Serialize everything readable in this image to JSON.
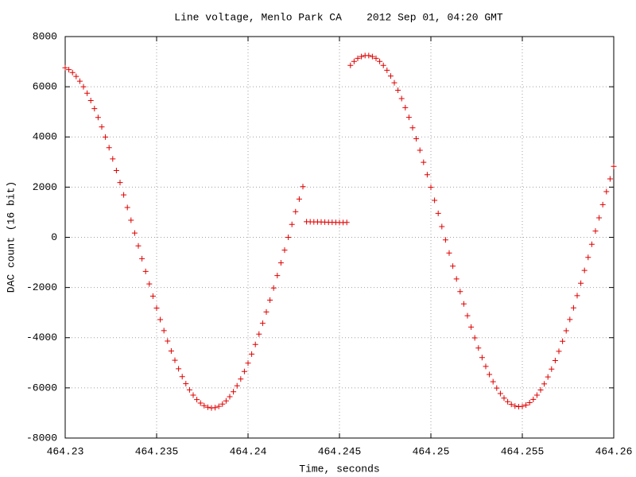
{
  "chart_data": {
    "type": "scatter",
    "title": "Line voltage, Menlo Park CA    2012 Sep 01, 04:20 GMT",
    "x_label": "Time, seconds",
    "y_label": "DAC count (16 bit)",
    "color": "#e00000",
    "grid": true,
    "xlim": [
      464.23,
      464.26
    ],
    "xticks": [
      464.23,
      464.235,
      464.24,
      464.245,
      464.25,
      464.255,
      464.26
    ],
    "ylim": [
      -8000,
      8000
    ],
    "yticks": [
      -8000,
      -6000,
      -4000,
      -2000,
      0,
      2000,
      4000,
      6000,
      8000
    ],
    "x": [
      464.23,
      464.2302,
      464.2304,
      464.2306,
      464.2308,
      464.231,
      464.2312,
      464.2314,
      464.2316,
      464.2318,
      464.232,
      464.2322,
      464.2324,
      464.2326,
      464.2328,
      464.233,
      464.2332,
      464.2334,
      464.2336,
      464.2338,
      464.234,
      464.2342,
      464.2344,
      464.2346,
      464.2348,
      464.235,
      464.2352,
      464.2354,
      464.2356,
      464.2358,
      464.236,
      464.2362,
      464.2364,
      464.2366,
      464.2368,
      464.237,
      464.2372,
      464.2374,
      464.2376,
      464.2378,
      464.238,
      464.2382,
      464.2384,
      464.2386,
      464.2388,
      464.239,
      464.2392,
      464.2394,
      464.2396,
      464.2398,
      464.24,
      464.2402,
      464.2404,
      464.2406,
      464.2408,
      464.241,
      464.2412,
      464.2414,
      464.2416,
      464.2418,
      464.242,
      464.2422,
      464.2424,
      464.2426,
      464.2428,
      464.243,
      464.2432,
      464.2434,
      464.2436,
      464.2438,
      464.244,
      464.2442,
      464.2444,
      464.2446,
      464.2448,
      464.245,
      464.2452,
      464.2454,
      464.2456,
      464.2458,
      464.246,
      464.2462,
      464.2464,
      464.2466,
      464.2468,
      464.247,
      464.2472,
      464.2474,
      464.2476,
      464.2478,
      464.248,
      464.2482,
      464.2484,
      464.2486,
      464.2488,
      464.249,
      464.2492,
      464.2494,
      464.2496,
      464.2498,
      464.25,
      464.2502,
      464.2504,
      464.2506,
      464.2508,
      464.251,
      464.2512,
      464.2514,
      464.2516,
      464.2518,
      464.252,
      464.2522,
      464.2524,
      464.2526,
      464.2528,
      464.253,
      464.2532,
      464.2534,
      464.2536,
      464.2538,
      464.254,
      464.2542,
      464.2544,
      464.2546,
      464.2548,
      464.255,
      464.2552,
      464.2554,
      464.2556,
      464.2558,
      464.256,
      464.2562,
      464.2564,
      464.2566,
      464.2568,
      464.257,
      464.2572,
      464.2574,
      464.2576,
      464.2578,
      464.258,
      464.2582,
      464.2584,
      464.2586,
      464.2588,
      464.259,
      464.2592,
      464.2594,
      464.2596,
      464.2598,
      464.26
    ],
    "values": [
      6757,
      6680,
      6565,
      6412,
      6223,
      6000,
      5741,
      5451,
      5129,
      4778,
      4400,
      3997,
      3572,
      3126,
      2662,
      2183,
      1691,
      1190,
      683,
      171,
      -341,
      -852,
      -1358,
      -1856,
      -2345,
      -2820,
      -3279,
      -3718,
      -4136,
      -4530,
      -4899,
      -5239,
      -5551,
      -5832,
      -6079,
      -6291,
      -6467,
      -6607,
      -6710,
      -6774,
      -6799,
      -6787,
      -6735,
      -6646,
      -6518,
      -6353,
      -6153,
      -5917,
      -5647,
      -5346,
      -5014,
      -4655,
      -4268,
      -3858,
      -3426,
      -2975,
      -2502,
      -2021,
      -1525,
      -1019,
      -511,
      1,
      513,
      1022,
      1526,
      2020,
      620,
      618,
      615,
      612,
      608,
      605,
      600,
      598,
      595,
      592,
      590,
      595,
      6851,
      7008,
      7131,
      7205,
      7245,
      7245,
      7205,
      7131,
      7008,
      6851,
      6656,
      6426,
      6160,
      5861,
      5529,
      5169,
      4780,
      4365,
      3927,
      3468,
      2990,
      2497,
      1991,
      1475,
      953,
      426,
      -101,
      -627,
      -1149,
      -1661,
      -2164,
      -2653,
      -3125,
      -3577,
      -4007,
      -4413,
      -4793,
      -5144,
      -5465,
      -5753,
      -6007,
      -6226,
      -6408,
      -6551,
      -6657,
      -6723,
      -6749,
      -6736,
      -6684,
      -6591,
      -6460,
      -6290,
      -6084,
      -5841,
      -5564,
      -5253,
      -4912,
      -4542,
      -4144,
      -3721,
      -3277,
      -2813,
      -2326,
      -1830,
      -1320,
      -799,
      -276,
      250,
      778,
      1302,
      1821,
      2330,
      2827
    ]
  }
}
